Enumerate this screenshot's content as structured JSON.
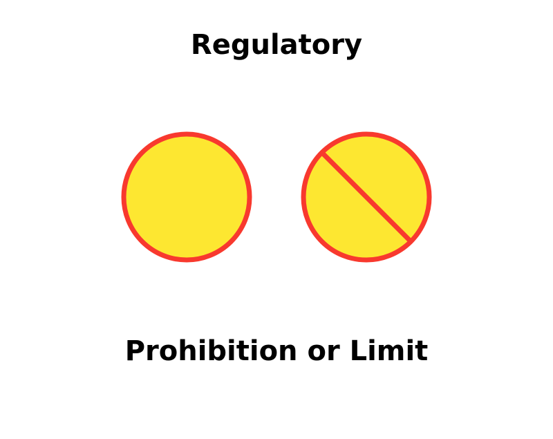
{
  "header": {
    "title": "Regulatory"
  },
  "footer": {
    "caption": "Prohibition or Limit"
  },
  "signs": [
    {
      "icon": "plain-circle-sign-icon"
    },
    {
      "icon": "circle-with-diagonal-bar-sign-icon"
    }
  ],
  "colors": {
    "fill": "#FDE731",
    "border": "#F8392E",
    "text": "#000000",
    "background": "#FFFFFF"
  }
}
